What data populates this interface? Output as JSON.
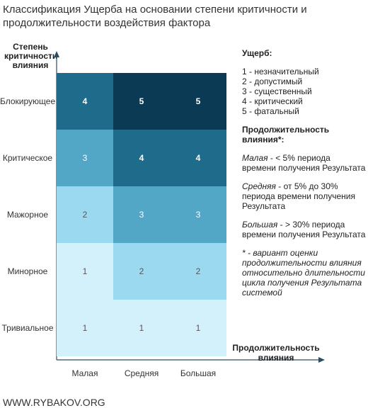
{
  "title": "Классификация Ущерба на основании степени критичности и продолжительности воздействия фактора",
  "y_axis_title": "Степень критичности влияния",
  "x_axis_title": "Продолжительность влияния",
  "rows": [
    "Блокирующее",
    "Критическое",
    "Мажорное",
    "Минорное",
    "Тривиальное"
  ],
  "columns": [
    "Малая",
    "Средняя",
    "Большая"
  ],
  "matrix": [
    [
      "4",
      "5",
      "5"
    ],
    [
      "3",
      "4",
      "4"
    ],
    [
      "2",
      "3",
      "3"
    ],
    [
      "1",
      "2",
      "2"
    ],
    [
      "1",
      "1",
      "1"
    ]
  ],
  "level_colors": {
    "1": "#d2f1fb",
    "2": "#9bd9f1",
    "3": "#52a6c6",
    "4": "#1e6b8c",
    "5": "#0b3b54"
  },
  "legend": {
    "damage_title": "Ущерб:",
    "damage_levels": [
      "1 - незначительный",
      "2 - допустимый",
      "3 - существенный",
      "4 - критический",
      "5 - фатальный"
    ],
    "duration_title": "Продолжительность влияния*:",
    "duration_items": [
      {
        "term": "Малая",
        "text": " - < 5% периода времени получения Результата"
      },
      {
        "term": "Средняя",
        "text": " - от 5% до 30% периода времени получения Результата"
      },
      {
        "term": "Большая",
        "text": " - > 30% периода времени получения Результата"
      }
    ],
    "note": "* - вариант оценки продолжительности влияния относительно длительности цикла получения Результата системой"
  },
  "footer": "WWW.RYBAKOV.ORG"
}
